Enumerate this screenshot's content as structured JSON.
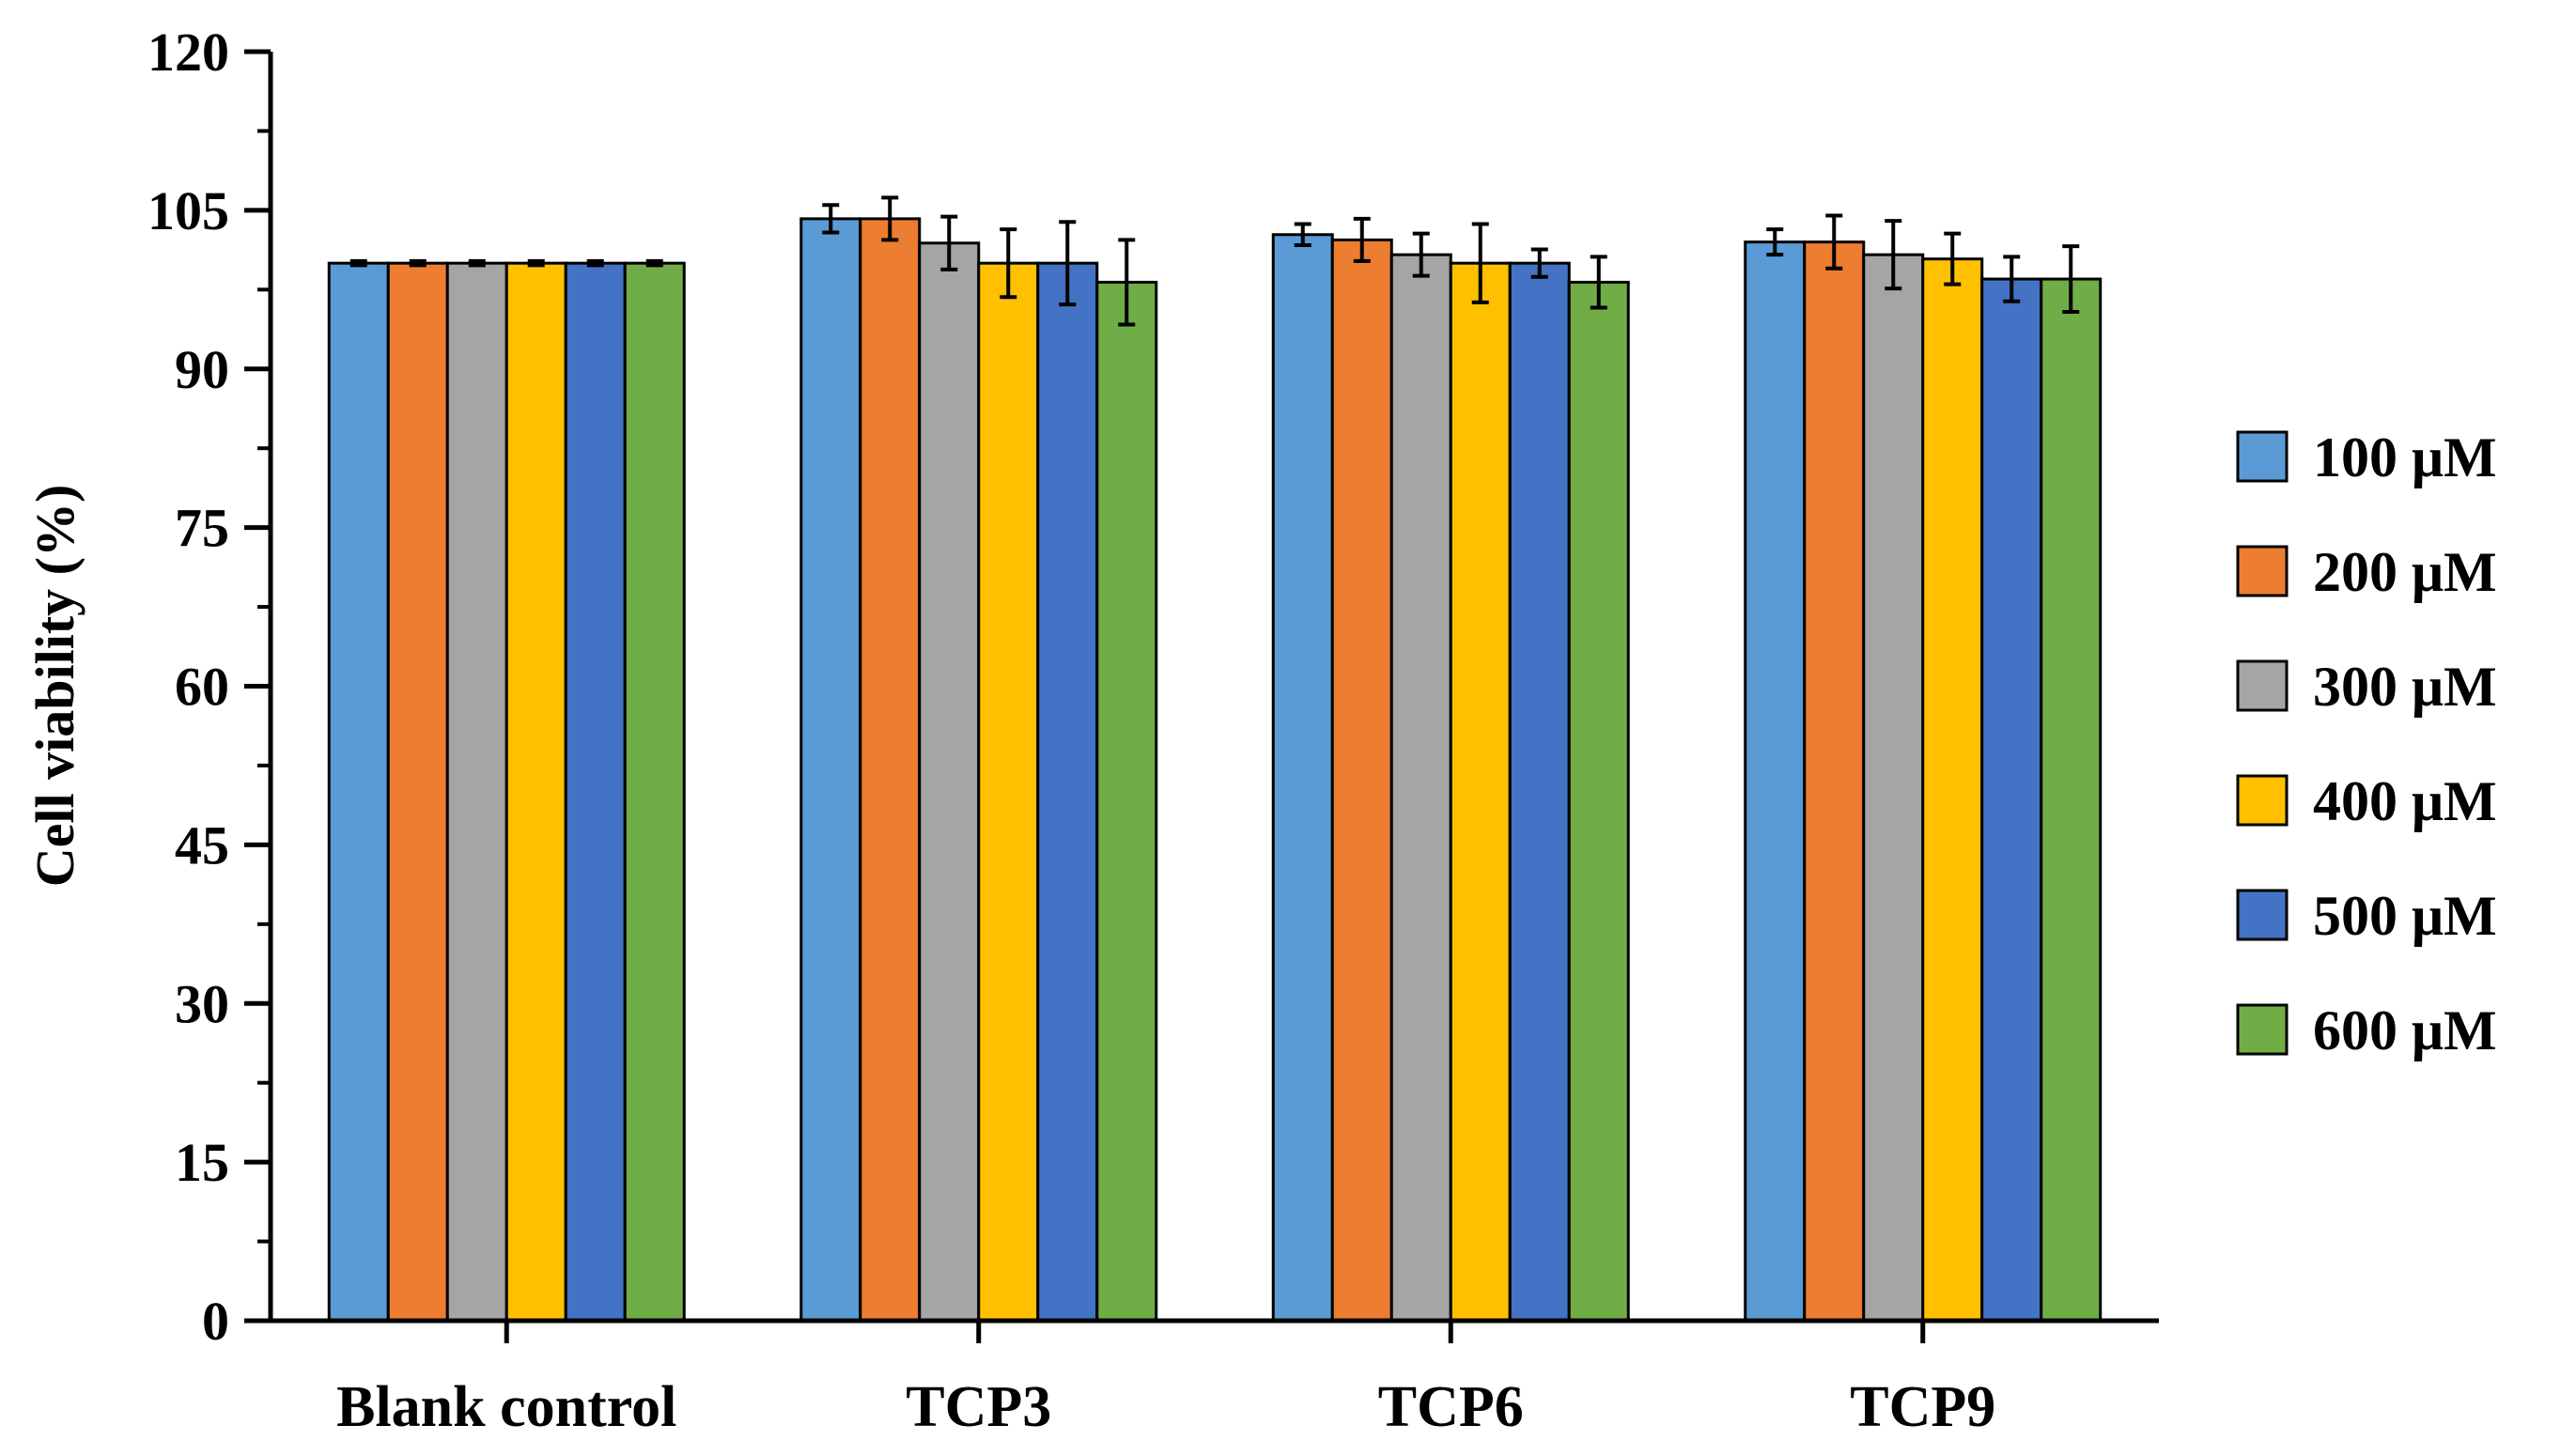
{
  "chart_data": {
    "type": "bar",
    "title": "",
    "xlabel": "",
    "ylabel": "Cell viability (%)",
    "ylim": [
      0,
      120
    ],
    "yticks": [
      0,
      15,
      30,
      45,
      60,
      75,
      90,
      105,
      120
    ],
    "categories": [
      "Blank control",
      "TCP3",
      "TCP6",
      "TCP9"
    ],
    "legend_position": "right",
    "series": [
      {
        "name": "100 μM",
        "color": "#5B9BD5",
        "values": [
          100,
          104.2,
          102.7,
          102.0
        ],
        "errors": [
          0.2,
          1.3,
          1.0,
          1.2
        ]
      },
      {
        "name": "200 μM",
        "color": "#ED7D31",
        "values": [
          100,
          104.2,
          102.2,
          102.0
        ],
        "errors": [
          0.2,
          2.0,
          2.0,
          2.5
        ]
      },
      {
        "name": "300 μM",
        "color": "#A5A5A5",
        "values": [
          100,
          101.9,
          100.8,
          100.8
        ],
        "errors": [
          0.2,
          2.5,
          2.0,
          3.2
        ]
      },
      {
        "name": "400 μM",
        "color": "#FFC000",
        "values": [
          100,
          100.0,
          100.0,
          100.4
        ],
        "errors": [
          0.2,
          3.2,
          3.7,
          2.4
        ]
      },
      {
        "name": "500 μM",
        "color": "#4472C4",
        "values": [
          100,
          100.0,
          100.0,
          98.5
        ],
        "errors": [
          0.2,
          3.9,
          1.3,
          2.1
        ]
      },
      {
        "name": "600 μM",
        "color": "#70AD47",
        "values": [
          100,
          98.2,
          98.2,
          98.5
        ],
        "errors": [
          0.2,
          4.0,
          2.4,
          3.1
        ]
      }
    ]
  }
}
